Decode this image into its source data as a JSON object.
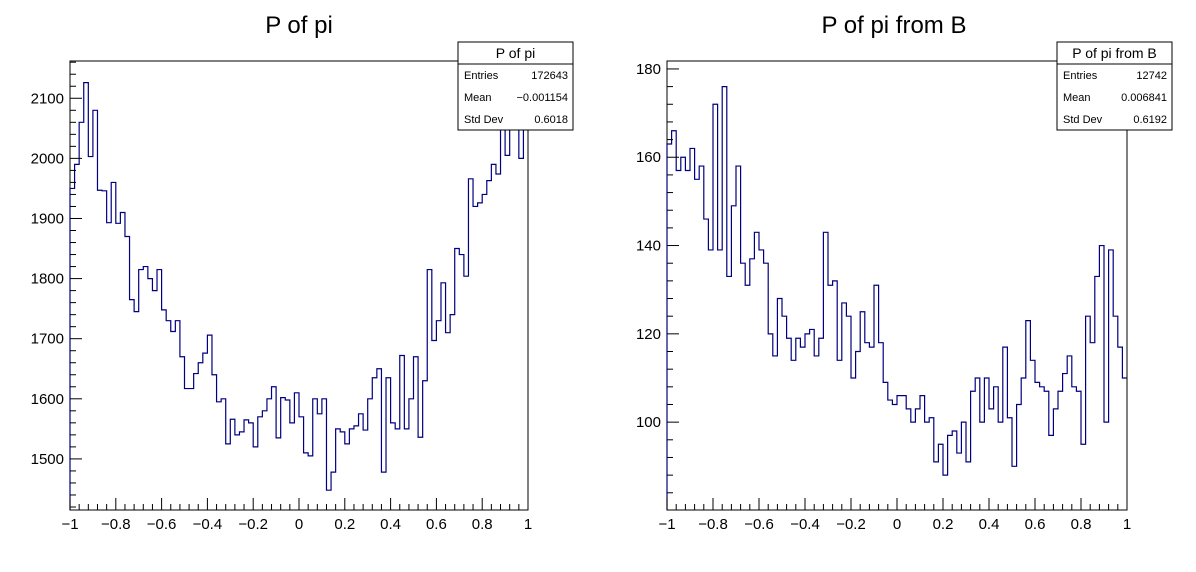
{
  "chart_data": [
    {
      "type": "histogram",
      "title": "P of pi",
      "xlabel": "",
      "ylabel": "",
      "xlim": [
        -1,
        1
      ],
      "ylim": [
        1415,
        2162
      ],
      "xticks": [
        -1,
        -0.8,
        -0.6,
        -0.4,
        -0.2,
        0,
        0.2,
        0.4,
        0.6,
        0.8,
        1
      ],
      "yticks": [
        1500,
        1600,
        1700,
        1800,
        1900,
        2000,
        2100
      ],
      "grid": false,
      "color": "#000080",
      "bin_edges_start": -1,
      "bin_width": 0.02,
      "values": [
        1950,
        1990,
        2060,
        2126,
        2003,
        2080,
        1947,
        1946,
        1893,
        1960,
        1892,
        1910,
        1870,
        1765,
        1745,
        1815,
        1820,
        1800,
        1780,
        1815,
        1748,
        1730,
        1712,
        1730,
        1670,
        1617,
        1617,
        1642,
        1660,
        1676,
        1706,
        1640,
        1595,
        1600,
        1525,
        1566,
        1540,
        1545,
        1565,
        1560,
        1520,
        1570,
        1580,
        1600,
        1620,
        1535,
        1602,
        1598,
        1560,
        1610,
        1570,
        1510,
        1505,
        1600,
        1575,
        1600,
        1448,
        1478,
        1550,
        1545,
        1525,
        1550,
        1555,
        1575,
        1548,
        1600,
        1635,
        1650,
        1478,
        1635,
        1560,
        1550,
        1672,
        1550,
        1600,
        1670,
        1536,
        1630,
        1815,
        1697,
        1730,
        1793,
        1710,
        1740,
        1850,
        1840,
        1804,
        1966,
        1920,
        1926,
        1940,
        1963,
        1990,
        1974,
        2050,
        2005,
        2050,
        2072,
        2000,
        2072
      ],
      "stats_box": {
        "title": "P of pi",
        "rows": [
          {
            "label": "Entries",
            "value": "172643"
          },
          {
            "label": "Mean",
            "value": "−0.001154"
          },
          {
            "label": "Std Dev",
            "value": "0.6018"
          }
        ]
      }
    },
    {
      "type": "histogram",
      "title": "P of pi from B",
      "xlabel": "",
      "ylabel": "",
      "xlim": [
        -1,
        1
      ],
      "ylim": [
        80.1,
        181.8
      ],
      "xticks": [
        -1,
        -0.8,
        -0.6,
        -0.4,
        -0.2,
        0,
        0.2,
        0.4,
        0.6,
        0.8,
        1
      ],
      "yticks": [
        100,
        120,
        140,
        160,
        180
      ],
      "grid": false,
      "color": "#000080",
      "bin_edges_start": -1,
      "bin_width": 0.02,
      "values": [
        163,
        166,
        157,
        160,
        157,
        162,
        155,
        158,
        146,
        139,
        172,
        139,
        176,
        133,
        149,
        158,
        136,
        131,
        137,
        143,
        139,
        136,
        120,
        115,
        128,
        124,
        119,
        114,
        119,
        117,
        120,
        121,
        115,
        119,
        143,
        131,
        132,
        114,
        127,
        124,
        110,
        116,
        125,
        118,
        117,
        131,
        118,
        109,
        105,
        104,
        106,
        106,
        103,
        100,
        103,
        106,
        100,
        101,
        91,
        95,
        88,
        97,
        98,
        93,
        100,
        91,
        107,
        110,
        100,
        110,
        103,
        108,
        100,
        117,
        101,
        90,
        104,
        110,
        123,
        114,
        109,
        108,
        107,
        97,
        103,
        107,
        111,
        115,
        108,
        107,
        95,
        124,
        118,
        133,
        140,
        100,
        139,
        124,
        117,
        110
      ],
      "stats_box": {
        "title": "P of pi from B",
        "rows": [
          {
            "label": "Entries",
            "value": "12742"
          },
          {
            "label": "Mean",
            "value": "0.006841"
          },
          {
            "label": "Std Dev",
            "value": "0.6192"
          }
        ]
      }
    }
  ]
}
